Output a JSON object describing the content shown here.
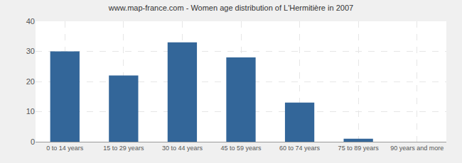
{
  "chart_data": {
    "type": "bar",
    "title": "www.map-france.com - Women age distribution of L'Hermitière in 2007",
    "categories": [
      "0 to 14 years",
      "15 to 29 years",
      "30 to 44 years",
      "45 to 59 years",
      "60 to 74 years",
      "75 to 89 years",
      "90 years and more"
    ],
    "values": [
      30,
      22,
      33,
      28,
      13,
      1,
      0
    ],
    "color": "#336699",
    "ylim": [
      0,
      40
    ],
    "yticks": [
      0,
      10,
      20,
      30,
      40
    ],
    "grid": true
  }
}
